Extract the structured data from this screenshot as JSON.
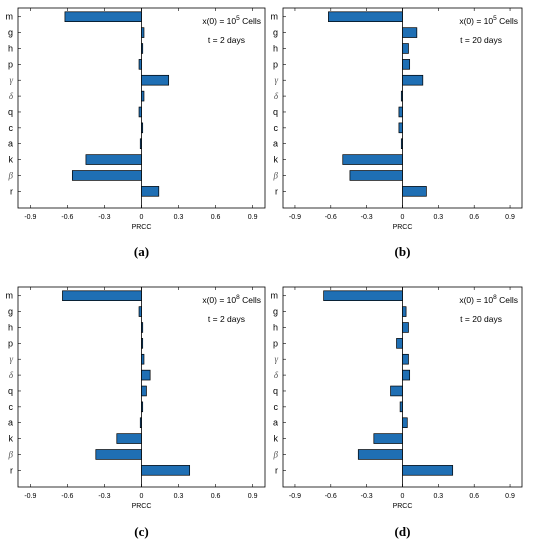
{
  "chart_data": [
    {
      "id": "a",
      "type": "bar",
      "orientation": "horizontal",
      "caption": "(a)",
      "annotation_line1": "x(0) = 10",
      "annotation_exp": "5",
      "annotation_suffix": " Cells",
      "annotation_line2": "t = 2 days",
      "xlabel": "PRCC",
      "xticks": [
        "-0.9",
        "-0.6",
        "-0.3",
        "0",
        "0.3",
        "0.6",
        "0.9"
      ],
      "xlim": [
        -1.0,
        1.0
      ],
      "categories": [
        "m",
        "g",
        "h",
        "p",
        "γ",
        "δ",
        "q",
        "c",
        "a",
        "k",
        "β",
        "r"
      ],
      "values": [
        -0.62,
        0.02,
        0.01,
        -0.02,
        0.22,
        0.02,
        -0.02,
        0.0,
        -0.01,
        -0.45,
        -0.56,
        0.14
      ],
      "bar_color": "#1f6fb4"
    },
    {
      "id": "b",
      "type": "bar",
      "orientation": "horizontal",
      "caption": "(b)",
      "annotation_line1": "x(0) = 10",
      "annotation_exp": "5",
      "annotation_suffix": " Cells",
      "annotation_line2": "t = 20 days",
      "xlabel": "PRCC",
      "xticks": [
        "-0.9",
        "-0.6",
        "-0.3",
        "0",
        "0.3",
        "0.6",
        "0.9"
      ],
      "xlim": [
        -1.0,
        1.0
      ],
      "categories": [
        "m",
        "g",
        "h",
        "p",
        "γ",
        "δ",
        "q",
        "c",
        "a",
        "k",
        "β",
        "r"
      ],
      "values": [
        -0.62,
        0.12,
        0.05,
        0.06,
        0.17,
        -0.01,
        -0.03,
        -0.03,
        -0.01,
        -0.5,
        -0.44,
        0.2
      ],
      "bar_color": "#1f6fb4"
    },
    {
      "id": "c",
      "type": "bar",
      "orientation": "horizontal",
      "caption": "(c)",
      "annotation_line1": "x(0) = 10",
      "annotation_exp": "8",
      "annotation_suffix": " Cells",
      "annotation_line2": "t = 2 days",
      "xlabel": "PRCC",
      "xticks": [
        "-0.9",
        "-0.6",
        "-0.3",
        "0",
        "0.3",
        "0.6",
        "0.9"
      ],
      "xlim": [
        -1.0,
        1.0
      ],
      "categories": [
        "m",
        "g",
        "h",
        "p",
        "γ",
        "δ",
        "q",
        "c",
        "a",
        "k",
        "β",
        "r"
      ],
      "values": [
        -0.64,
        -0.02,
        0.01,
        0.0,
        0.02,
        0.07,
        0.04,
        0.0,
        -0.01,
        -0.2,
        -0.37,
        0.39
      ],
      "bar_color": "#1f6fb4"
    },
    {
      "id": "d",
      "type": "bar",
      "orientation": "horizontal",
      "caption": "(d)",
      "annotation_line1": "x(0) = 10",
      "annotation_exp": "8",
      "annotation_suffix": " Cells",
      "annotation_line2": "t = 20 days",
      "xlabel": "PRCC",
      "xticks": [
        "-0.9",
        "-0.6",
        "-0.3",
        "0",
        "0.3",
        "0.6",
        "0.9"
      ],
      "xlim": [
        -1.0,
        1.0
      ],
      "categories": [
        "m",
        "g",
        "h",
        "p",
        "γ",
        "δ",
        "q",
        "c",
        "a",
        "k",
        "β",
        "r"
      ],
      "values": [
        -0.66,
        0.03,
        0.05,
        -0.05,
        0.05,
        0.06,
        -0.1,
        -0.02,
        0.04,
        -0.24,
        -0.37,
        0.42
      ],
      "bar_color": "#1f6fb4"
    }
  ]
}
